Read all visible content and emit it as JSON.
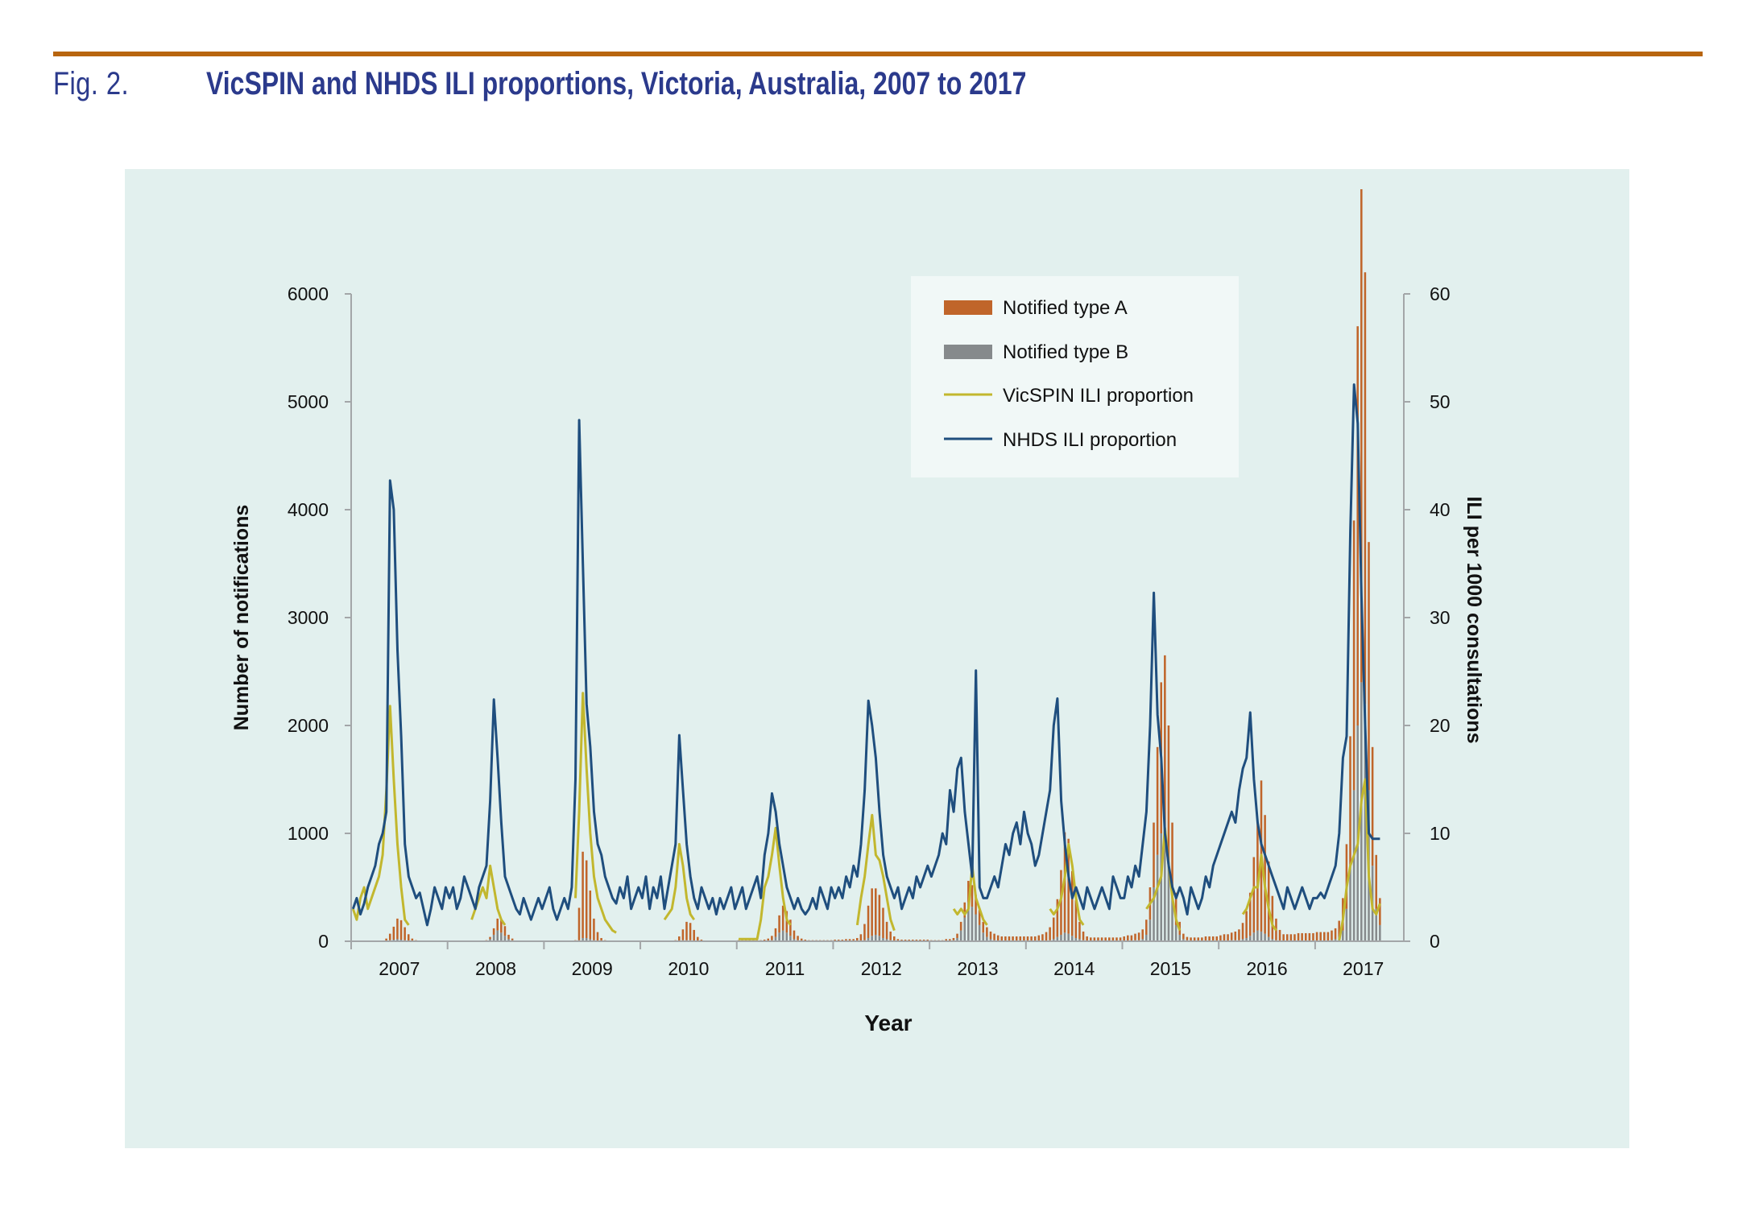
{
  "figure": {
    "label": "Fig. 2.",
    "title": "VicSPIN and NHDS ILI proportions, Victoria, Australia, 2007 to 2017"
  },
  "colors": {
    "rule": "#b8650f",
    "title": "#2b3a8c",
    "panel_bg": "#e2f0ee",
    "legend_bg": "#f1f8f7",
    "type_a": "#c0652a",
    "type_b": "#868a8c",
    "vicspin": "#c2b72e",
    "nhds": "#1f4e7e",
    "axis": "#a3a6a8"
  },
  "chart_data": {
    "type": "bar+line",
    "title": "VicSPIN and NHDS ILI proportions, Victoria, Australia, 2007 to 2017",
    "xlabel": "Year",
    "ylabel_left": "Number of notifications",
    "ylabel_right": "ILI per 1000 consultations",
    "ylim_left": [
      0,
      6000
    ],
    "ylim_right": [
      0,
      60
    ],
    "yticks_left": [
      "0",
      "1000",
      "2000",
      "3000",
      "4000",
      "5000",
      "6000"
    ],
    "yticks_right": [
      "0",
      "10",
      "20",
      "30",
      "40",
      "50",
      "60"
    ],
    "x_categories": [
      "2007",
      "2008",
      "2009",
      "2010",
      "2011",
      "2012",
      "2013",
      "2014",
      "2015",
      "2016",
      "2017"
    ],
    "x_range_years": [
      2007.0,
      2017.92
    ],
    "points_per_year": 26,
    "grid": false,
    "legend_position": "top-center-right",
    "legend": [
      {
        "label": "Notified type A",
        "kind": "bar"
      },
      {
        "label": "Notified type B",
        "kind": "bar"
      },
      {
        "label": "VicSPIN ILI proportion",
        "kind": "line"
      },
      {
        "label": "NHDS ILI proportion",
        "kind": "line"
      }
    ],
    "series": [
      {
        "name": "Notified type A",
        "axis": "left",
        "values": [
          0,
          0,
          0,
          0,
          0,
          0,
          0,
          0,
          5,
          20,
          60,
          120,
          190,
          180,
          120,
          60,
          25,
          10,
          5,
          0,
          0,
          0,
          0,
          0,
          0,
          0,
          0,
          0,
          0,
          0,
          0,
          0,
          0,
          0,
          0,
          0,
          5,
          20,
          60,
          110,
          120,
          90,
          40,
          15,
          5,
          0,
          0,
          0,
          0,
          0,
          0,
          0,
          0,
          0,
          0,
          0,
          0,
          0,
          0,
          0,
          10,
          300,
          800,
          720,
          450,
          200,
          80,
          30,
          10,
          5,
          0,
          0,
          0,
          0,
          0,
          0,
          0,
          0,
          0,
          0,
          0,
          0,
          0,
          0,
          0,
          0,
          0,
          10,
          40,
          100,
          170,
          160,
          100,
          40,
          15,
          5,
          0,
          0,
          0,
          0,
          0,
          0,
          0,
          0,
          10,
          10,
          10,
          10,
          10,
          10,
          10,
          15,
          20,
          40,
          80,
          160,
          230,
          200,
          150,
          80,
          40,
          20,
          15,
          10,
          10,
          10,
          10,
          10,
          10,
          10,
          15,
          15,
          15,
          20,
          20,
          20,
          30,
          60,
          150,
          300,
          440,
          430,
          380,
          280,
          160,
          80,
          40,
          20,
          15,
          15,
          15,
          15,
          15,
          15,
          15,
          15,
          10,
          10,
          10,
          10,
          15,
          15,
          20,
          40,
          80,
          140,
          200,
          200,
          180,
          140,
          100,
          90,
          70,
          60,
          50,
          40,
          40,
          40,
          40,
          40,
          40,
          40,
          40,
          40,
          40,
          50,
          60,
          80,
          120,
          200,
          350,
          600,
          930,
          880,
          600,
          350,
          160,
          80,
          40,
          30,
          30,
          30,
          30,
          30,
          30,
          30,
          30,
          30,
          40,
          50,
          50,
          60,
          70,
          90,
          140,
          300,
          600,
          1000,
          1400,
          1700,
          1300,
          700,
          300,
          120,
          50,
          30,
          30,
          30,
          30,
          30,
          40,
          40,
          40,
          40,
          50,
          60,
          60,
          70,
          80,
          100,
          150,
          250,
          400,
          700,
          1000,
          1400,
          1100,
          700,
          400,
          200,
          100,
          60,
          60,
          60,
          60,
          70,
          70,
          70,
          70,
          70,
          80,
          80,
          80,
          80,
          90,
          100,
          150,
          300,
          600,
          1200,
          2500,
          3700,
          4570,
          4000,
          2300,
          1100,
          500,
          250
        ]
      },
      {
        "name": "Notified type B",
        "axis": "left",
        "values": [
          0,
          0,
          0,
          0,
          0,
          0,
          0,
          0,
          0,
          5,
          10,
          15,
          20,
          15,
          10,
          5,
          0,
          0,
          0,
          0,
          0,
          0,
          0,
          0,
          0,
          0,
          0,
          0,
          0,
          0,
          0,
          0,
          0,
          0,
          0,
          0,
          5,
          20,
          60,
          100,
          80,
          50,
          20,
          10,
          0,
          0,
          0,
          0,
          0,
          0,
          0,
          0,
          0,
          0,
          0,
          0,
          0,
          0,
          0,
          0,
          0,
          10,
          30,
          30,
          20,
          10,
          5,
          0,
          0,
          0,
          0,
          0,
          0,
          0,
          0,
          0,
          0,
          0,
          0,
          0,
          0,
          0,
          0,
          0,
          0,
          0,
          0,
          0,
          5,
          10,
          10,
          10,
          5,
          0,
          0,
          0,
          0,
          0,
          0,
          0,
          0,
          0,
          0,
          0,
          0,
          0,
          0,
          0,
          0,
          0,
          0,
          0,
          5,
          10,
          40,
          80,
          100,
          80,
          50,
          20,
          10,
          5,
          0,
          0,
          0,
          0,
          0,
          0,
          0,
          0,
          0,
          0,
          0,
          0,
          0,
          0,
          0,
          5,
          10,
          30,
          50,
          60,
          50,
          30,
          20,
          10,
          5,
          0,
          0,
          0,
          0,
          0,
          0,
          0,
          0,
          0,
          0,
          0,
          0,
          0,
          5,
          5,
          10,
          30,
          100,
          220,
          360,
          320,
          250,
          150,
          80,
          40,
          20,
          10,
          5,
          5,
          5,
          5,
          5,
          5,
          5,
          5,
          5,
          5,
          5,
          5,
          5,
          5,
          10,
          20,
          40,
          60,
          80,
          70,
          50,
          30,
          20,
          10,
          5,
          5,
          5,
          5,
          5,
          5,
          5,
          5,
          5,
          5,
          5,
          5,
          5,
          10,
          10,
          20,
          60,
          200,
          500,
          800,
          1000,
          950,
          700,
          400,
          150,
          60,
          20,
          10,
          5,
          5,
          5,
          5,
          5,
          5,
          5,
          5,
          5,
          5,
          5,
          10,
          10,
          10,
          20,
          30,
          50,
          80,
          100,
          90,
          70,
          40,
          20,
          10,
          5,
          5,
          5,
          5,
          5,
          5,
          5,
          5,
          5,
          5,
          5,
          5,
          5,
          5,
          10,
          20,
          40,
          100,
          300,
          700,
          1400,
          2000,
          2400,
          2200,
          1400,
          700,
          300,
          150
        ]
      },
      {
        "name": "VicSPIN ILI proportion",
        "axis": "right",
        "values": [
          3,
          2,
          4,
          5,
          3,
          4,
          5,
          6,
          8,
          14,
          21.8,
          15,
          9,
          5,
          2,
          1.5,
          null,
          null,
          null,
          null,
          null,
          null,
          null,
          null,
          null,
          null,
          null,
          null,
          null,
          null,
          null,
          null,
          2,
          3,
          4,
          5,
          4,
          7,
          5,
          3,
          2,
          1.5,
          null,
          null,
          null,
          null,
          null,
          null,
          null,
          null,
          null,
          null,
          null,
          null,
          null,
          null,
          null,
          null,
          null,
          null,
          4,
          12,
          23,
          16,
          10,
          6,
          4,
          3,
          2,
          1.5,
          1,
          0.8,
          null,
          null,
          null,
          null,
          null,
          null,
          null,
          null,
          null,
          null,
          null,
          null,
          2,
          2.5,
          3,
          5,
          9,
          7,
          4,
          2.5,
          2,
          null,
          null,
          null,
          null,
          null,
          null,
          null,
          null,
          null,
          null,
          null,
          0.2,
          0.2,
          0.2,
          0.2,
          0.2,
          0.2,
          2,
          5,
          6,
          8,
          10.5,
          7,
          4,
          2,
          1.5,
          null,
          null,
          null,
          null,
          null,
          null,
          null,
          null,
          null,
          null,
          null,
          null,
          null,
          null,
          null,
          null,
          null,
          1.5,
          4,
          6,
          9,
          11.7,
          8,
          7.5,
          6,
          4,
          2,
          1,
          null,
          null,
          null,
          null,
          null,
          null,
          null,
          null,
          null,
          null,
          null,
          null,
          null,
          null,
          null,
          3,
          2.5,
          3,
          2.5,
          3,
          7,
          4,
          3,
          2,
          1.5,
          null,
          null,
          null,
          null,
          null,
          null,
          null,
          null,
          null,
          null,
          null,
          null,
          null,
          null,
          null,
          null,
          3,
          2.5,
          3,
          4,
          6,
          9,
          7,
          4,
          2,
          1.5,
          null,
          null,
          null,
          null,
          null,
          null,
          null,
          null,
          null,
          null,
          null,
          null,
          null,
          null,
          null,
          null,
          3,
          3.5,
          4,
          5,
          6,
          10.5,
          7,
          4,
          2,
          1,
          null,
          null,
          null,
          null,
          null,
          null,
          null,
          null,
          null,
          null,
          null,
          null,
          null,
          null,
          null,
          null,
          2.5,
          3,
          4,
          5,
          5,
          8,
          5,
          3,
          1.5,
          1,
          null,
          null,
          null,
          null,
          null,
          null,
          null,
          null,
          null,
          null,
          null,
          null,
          null,
          null,
          null,
          null,
          0.1,
          2,
          5,
          7,
          8,
          9,
          13,
          15,
          6,
          3,
          2.5,
          3.5
        ]
      },
      {
        "name": "NHDS ILI proportion",
        "axis": "right",
        "values": [
          3,
          4,
          2.5,
          3.5,
          5,
          6,
          7,
          9,
          10,
          12,
          42.7,
          40,
          27,
          19,
          9,
          6,
          5,
          4,
          4.5,
          3,
          1.5,
          3,
          5,
          4,
          3,
          5,
          4,
          5,
          3,
          4,
          6,
          5,
          4,
          3,
          5,
          6,
          7,
          13,
          22.4,
          17,
          11,
          6,
          5,
          4,
          3,
          2.5,
          4,
          3,
          2,
          3,
          4,
          3,
          4,
          5,
          3,
          2,
          3,
          4,
          3,
          5,
          15,
          48.3,
          35,
          22,
          18,
          12,
          9,
          8,
          6,
          5,
          4,
          3.5,
          5,
          4,
          6,
          3,
          4,
          5,
          4,
          6,
          3,
          5,
          4,
          6,
          3,
          5,
          7,
          9,
          19.1,
          14,
          9,
          6,
          4,
          3,
          5,
          4,
          3,
          4,
          2.5,
          4,
          3,
          4,
          5,
          3,
          4,
          5,
          3,
          4,
          5,
          6,
          4,
          8,
          10,
          13.7,
          12,
          9,
          7,
          5,
          4,
          3,
          4,
          3,
          2.5,
          3,
          4,
          3,
          5,
          4,
          3,
          5,
          4,
          5,
          4,
          6,
          5,
          7,
          6,
          9,
          14,
          22.3,
          20,
          17,
          12,
          8,
          6,
          5,
          4,
          5,
          3,
          4,
          5,
          4,
          6,
          5,
          6,
          7,
          6,
          7,
          8,
          10,
          9,
          14,
          12,
          16,
          17,
          12,
          9,
          6,
          25.1,
          5,
          4,
          4,
          5,
          6,
          5,
          7,
          9,
          8,
          10,
          11,
          9,
          12,
          10,
          9,
          7,
          8,
          10,
          12,
          14,
          20,
          22.5,
          13,
          9,
          6,
          4,
          5,
          4,
          3,
          5,
          4,
          3,
          4,
          5,
          4,
          3,
          6,
          5,
          4,
          4,
          6,
          5,
          7,
          6,
          9,
          12,
          20,
          32.3,
          21,
          17,
          10,
          7,
          5,
          4,
          5,
          4,
          2.5,
          5,
          4,
          3,
          4,
          6,
          5,
          7,
          8,
          9,
          10,
          11,
          12,
          11,
          14,
          16,
          17,
          21.2,
          15,
          11,
          9,
          8,
          7,
          6,
          5,
          4,
          3,
          5,
          4,
          3,
          4,
          5,
          4,
          3,
          4,
          4,
          4.5,
          4,
          5,
          6,
          7,
          10,
          17,
          19,
          38,
          51.6,
          48,
          32,
          20,
          10,
          9.5,
          9.5,
          9.5
        ]
      }
    ]
  }
}
